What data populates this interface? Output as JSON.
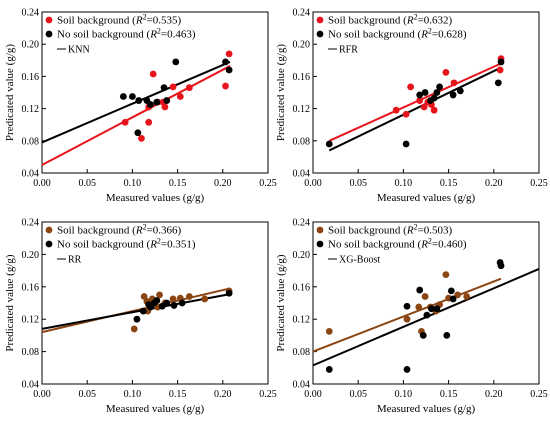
{
  "chart_data": [
    {
      "type": "scatter",
      "xlabel": "Measured values (g/g)",
      "ylabel": "Predicated value (g/g)",
      "xlim": [
        0,
        0.25
      ],
      "ylim": [
        0.04,
        0.24
      ],
      "xticks": [
        "0.00",
        "0.05",
        "0.10",
        "0.15",
        "0.20",
        "0.25"
      ],
      "yticks": [
        "0.04",
        "0.08",
        "0.12",
        "0.16",
        "0.20",
        "0.24"
      ],
      "legend_placement": "top-left",
      "legend": [
        {
          "prefix": "Soil background (",
          "r2": "=0.535)",
          "color": "#e8141b",
          "kind": "dot"
        },
        {
          "prefix": "No soil background (",
          "r2": "=0.463)",
          "color": "#000000",
          "kind": "dot"
        },
        {
          "label": "KNN",
          "kind": "line"
        }
      ],
      "series": [
        {
          "name": "Soil background",
          "color": "#e8141b",
          "points": [
            [
              0.092,
              0.103
            ],
            [
              0.11,
              0.083
            ],
            [
              0.118,
              0.103
            ],
            [
              0.118,
              0.122
            ],
            [
              0.123,
              0.163
            ],
            [
              0.128,
              0.128
            ],
            [
              0.134,
              0.128
            ],
            [
              0.136,
              0.122
            ],
            [
              0.145,
              0.147
            ],
            [
              0.153,
              0.135
            ],
            [
              0.163,
              0.146
            ],
            [
              0.203,
              0.148
            ],
            [
              0.207,
              0.188
            ]
          ],
          "fit": [
            0.0,
            0.05,
            0.208,
            0.173
          ]
        },
        {
          "name": "No soil background",
          "color": "#000000",
          "points": [
            [
              0.09,
              0.135
            ],
            [
              0.1,
              0.135
            ],
            [
              0.106,
              0.09
            ],
            [
              0.107,
              0.13
            ],
            [
              0.116,
              0.13
            ],
            [
              0.12,
              0.125
            ],
            [
              0.127,
              0.128
            ],
            [
              0.135,
              0.146
            ],
            [
              0.138,
              0.13
            ],
            [
              0.148,
              0.178
            ],
            [
              0.203,
              0.178
            ],
            [
              0.207,
              0.168
            ]
          ],
          "fit": [
            0.0,
            0.078,
            0.208,
            0.178
          ]
        }
      ]
    },
    {
      "type": "scatter",
      "xlabel": "Measured values (g/g)",
      "ylabel": "Predicated value (g/g)",
      "xlim": [
        0,
        0.25
      ],
      "ylim": [
        0.04,
        0.24
      ],
      "xticks": [
        "0.00",
        "0.05",
        "0.10",
        "0.15",
        "0.20",
        "0.25"
      ],
      "yticks": [
        "0.04",
        "0.08",
        "0.12",
        "0.16",
        "0.20",
        "0.24"
      ],
      "legend_placement": "top-left",
      "legend": [
        {
          "prefix": "Soil background (",
          "r2": "=0.632)",
          "color": "#e8141b",
          "kind": "dot"
        },
        {
          "prefix": "No soil background (",
          "r2": "=0.628)",
          "color": "#000000",
          "kind": "dot"
        },
        {
          "label": "RFR",
          "kind": "line"
        }
      ],
      "series": [
        {
          "name": "Soil background",
          "color": "#e8141b",
          "points": [
            [
              0.092,
              0.118
            ],
            [
              0.103,
              0.113
            ],
            [
              0.108,
              0.147
            ],
            [
              0.118,
              0.13
            ],
            [
              0.123,
              0.122
            ],
            [
              0.127,
              0.128
            ],
            [
              0.131,
              0.125
            ],
            [
              0.134,
              0.118
            ],
            [
              0.147,
              0.165
            ],
            [
              0.156,
              0.152
            ],
            [
              0.207,
              0.168
            ],
            [
              0.208,
              0.182
            ]
          ],
          "fit": [
            0.018,
            0.08,
            0.208,
            0.176
          ]
        },
        {
          "name": "No soil background",
          "color": "#000000",
          "points": [
            [
              0.018,
              0.076
            ],
            [
              0.103,
              0.076
            ],
            [
              0.118,
              0.137
            ],
            [
              0.124,
              0.14
            ],
            [
              0.13,
              0.13
            ],
            [
              0.134,
              0.133
            ],
            [
              0.137,
              0.14
            ],
            [
              0.14,
              0.147
            ],
            [
              0.155,
              0.137
            ],
            [
              0.163,
              0.142
            ],
            [
              0.205,
              0.152
            ],
            [
              0.208,
              0.178
            ]
          ],
          "fit": [
            0.018,
            0.068,
            0.208,
            0.171
          ]
        }
      ]
    },
    {
      "type": "scatter",
      "xlabel": "Measured values (g/g)",
      "ylabel": "Predicated value (g/g)",
      "xlim": [
        0,
        0.25
      ],
      "ylim": [
        0.04,
        0.24
      ],
      "xticks": [
        "0.00",
        "0.05",
        "0.10",
        "0.15",
        "0.20",
        "0.25"
      ],
      "yticks": [
        "0.04",
        "0.08",
        "0.12",
        "0.16",
        "0.20",
        "0.24"
      ],
      "legend_placement": "top-left",
      "legend": [
        {
          "prefix": "Soil background (",
          "r2": "=0.366)",
          "color": "#8b4513",
          "kind": "dot"
        },
        {
          "prefix": "No soil background (",
          "r2": "=0.351)",
          "color": "#000000",
          "kind": "dot"
        },
        {
          "label": "RR",
          "kind": "line"
        }
      ],
      "series": [
        {
          "name": "Soil background",
          "color": "#8b4513",
          "points": [
            [
              0.102,
              0.108
            ],
            [
              0.113,
              0.148
            ],
            [
              0.117,
              0.13
            ],
            [
              0.122,
              0.145
            ],
            [
              0.128,
              0.135
            ],
            [
              0.136,
              0.14
            ],
            [
              0.145,
              0.145
            ],
            [
              0.153,
              0.146
            ],
            [
              0.163,
              0.148
            ],
            [
              0.18,
              0.145
            ],
            [
              0.207,
              0.155
            ],
            [
              0.116,
              0.142
            ],
            [
              0.13,
              0.15
            ]
          ],
          "fit": [
            0.0,
            0.104,
            0.208,
            0.158
          ]
        },
        {
          "name": "No soil background",
          "color": "#000000",
          "points": [
            [
              0.105,
              0.12
            ],
            [
              0.112,
              0.13
            ],
            [
              0.118,
              0.138
            ],
            [
              0.12,
              0.135
            ],
            [
              0.124,
              0.14
            ],
            [
              0.127,
              0.143
            ],
            [
              0.133,
              0.136
            ],
            [
              0.138,
              0.14
            ],
            [
              0.146,
              0.137
            ],
            [
              0.155,
              0.14
            ],
            [
              0.207,
              0.152
            ]
          ],
          "fit": [
            0.0,
            0.108,
            0.208,
            0.151
          ]
        }
      ]
    },
    {
      "type": "scatter",
      "xlabel": "Measured values (g/g)",
      "ylabel": "Predicated value (g/g)",
      "xlim": [
        0,
        0.25
      ],
      "ylim": [
        0.04,
        0.24
      ],
      "xticks": [
        "0.00",
        "0.05",
        "0.10",
        "0.15",
        "0.20",
        "0.25"
      ],
      "yticks": [
        "0.04",
        "0.08",
        "0.12",
        "0.16",
        "0.20",
        "0.24"
      ],
      "legend_placement": "top-left",
      "legend": [
        {
          "prefix": "Soil background (",
          "r2": "=0.503)",
          "color": "#8b4513",
          "kind": "dot"
        },
        {
          "prefix": "No soil background (",
          "r2": "=0.460)",
          "color": "#000000",
          "kind": "dot"
        },
        {
          "label": "XG-Boost",
          "kind": "line"
        }
      ],
      "series": [
        {
          "name": "Soil background",
          "color": "#8b4513",
          "points": [
            [
              0.018,
              0.105
            ],
            [
              0.104,
              0.12
            ],
            [
              0.12,
              0.105
            ],
            [
              0.124,
              0.148
            ],
            [
              0.13,
              0.135
            ],
            [
              0.136,
              0.13
            ],
            [
              0.14,
              0.138
            ],
            [
              0.147,
              0.175
            ],
            [
              0.15,
              0.146
            ],
            [
              0.16,
              0.15
            ],
            [
              0.17,
              0.148
            ],
            [
              0.117,
              0.135
            ]
          ],
          "fit": [
            0.0,
            0.08,
            0.208,
            0.17
          ]
        },
        {
          "name": "No soil background",
          "color": "#000000",
          "points": [
            [
              0.018,
              0.058
            ],
            [
              0.104,
              0.058
            ],
            [
              0.104,
              0.136
            ],
            [
              0.118,
              0.156
            ],
            [
              0.122,
              0.1
            ],
            [
              0.126,
              0.125
            ],
            [
              0.131,
              0.133
            ],
            [
              0.137,
              0.133
            ],
            [
              0.148,
              0.1
            ],
            [
              0.153,
              0.155
            ],
            [
              0.155,
              0.145
            ],
            [
              0.207,
              0.19
            ],
            [
              0.208,
              0.186
            ]
          ],
          "fit": [
            0.0,
            0.063,
            0.25,
            0.182
          ]
        }
      ]
    }
  ]
}
